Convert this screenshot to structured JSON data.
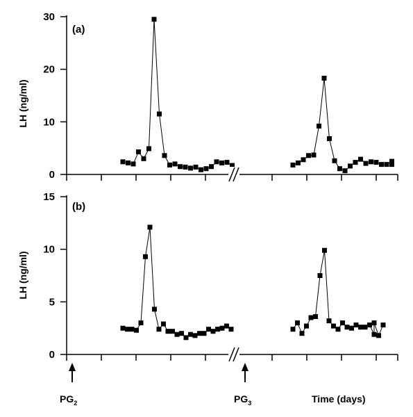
{
  "chart_data": [
    {
      "type": "line",
      "panel_label": "(a)",
      "ylabel": "LH (ng/ml)",
      "ylim": [
        0,
        30
      ],
      "yticks": [
        0,
        10,
        20,
        30
      ],
      "marker": "square",
      "grid": false,
      "series": [
        {
          "segment": "before PG3",
          "points": [
            [
              0,
              2.4
            ],
            [
              1,
              2.2
            ],
            [
              2,
              2.0
            ],
            [
              3,
              4.3
            ],
            [
              4,
              3.0
            ],
            [
              5,
              4.9
            ],
            [
              6,
              29.5
            ],
            [
              7,
              11.5
            ],
            [
              8,
              3.6
            ],
            [
              9,
              1.8
            ],
            [
              10,
              2.0
            ],
            [
              11,
              1.5
            ],
            [
              12,
              1.4
            ],
            [
              13,
              1.2
            ],
            [
              14,
              1.4
            ],
            [
              15,
              0.9
            ],
            [
              16,
              1.1
            ],
            [
              17,
              1.5
            ],
            [
              18,
              2.4
            ],
            [
              19,
              2.2
            ],
            [
              20,
              2.3
            ],
            [
              21,
              1.7
            ]
          ]
        },
        {
          "segment": "after PG3",
          "points": [
            [
              0,
              1.8
            ],
            [
              1,
              2.2
            ],
            [
              2,
              2.8
            ],
            [
              3,
              3.6
            ],
            [
              4,
              3.7
            ],
            [
              5,
              9.2
            ],
            [
              6,
              18.3
            ],
            [
              7,
              6.8
            ],
            [
              8,
              2.6
            ],
            [
              9,
              1.1
            ],
            [
              10,
              0.7
            ],
            [
              11,
              1.6
            ],
            [
              12,
              2.3
            ],
            [
              13,
              2.9
            ],
            [
              14,
              2.1
            ],
            [
              15,
              2.4
            ],
            [
              16,
              2.3
            ],
            [
              17,
              1.9
            ],
            [
              18,
              1.9
            ],
            [
              19,
              2.5
            ],
            [
              19,
              1.9
            ]
          ]
        }
      ]
    },
    {
      "type": "line",
      "panel_label": "(b)",
      "ylabel": "LH (ng/ml)",
      "ylim": [
        0,
        15
      ],
      "yticks": [
        0,
        5,
        10,
        15
      ],
      "marker": "square",
      "grid": false,
      "series": [
        {
          "segment": "before PG3",
          "points": [
            [
              0,
              2.5
            ],
            [
              1,
              2.4
            ],
            [
              2,
              2.4
            ],
            [
              3,
              2.3
            ],
            [
              4,
              3.0
            ],
            [
              5,
              9.3
            ],
            [
              6,
              12.1
            ],
            [
              7,
              4.3
            ],
            [
              8,
              2.4
            ],
            [
              9,
              2.9
            ],
            [
              10,
              2.2
            ],
            [
              11,
              2.2
            ],
            [
              12,
              1.9
            ],
            [
              13,
              2.0
            ],
            [
              14,
              1.6
            ],
            [
              15,
              1.9
            ],
            [
              16,
              1.8
            ],
            [
              17,
              2.0
            ],
            [
              18,
              2.0
            ],
            [
              19,
              2.4
            ],
            [
              20,
              2.2
            ],
            [
              21,
              2.4
            ],
            [
              22,
              2.5
            ],
            [
              23,
              2.7
            ],
            [
              24,
              2.4
            ]
          ]
        },
        {
          "segment": "after PG3",
          "points": [
            [
              0,
              2.4
            ],
            [
              1,
              3.0
            ],
            [
              2,
              2.0
            ],
            [
              3,
              2.7
            ],
            [
              4,
              3.5
            ],
            [
              5,
              3.6
            ],
            [
              6,
              7.5
            ],
            [
              7,
              9.9
            ],
            [
              8,
              3.2
            ],
            [
              9,
              2.7
            ],
            [
              10,
              2.4
            ],
            [
              11,
              3.0
            ],
            [
              12,
              2.6
            ],
            [
              13,
              2.5
            ],
            [
              14,
              2.8
            ],
            [
              15,
              2.6
            ],
            [
              16,
              2.6
            ],
            [
              17,
              2.8
            ],
            [
              18,
              1.9
            ],
            [
              18,
              3.0
            ],
            [
              19,
              1.8
            ],
            [
              20,
              2.8
            ]
          ]
        }
      ]
    }
  ],
  "annotations": {
    "pg2": {
      "main": "PG",
      "sub": "2"
    },
    "pg3": {
      "main": "PG",
      "sub": "3"
    },
    "xlabel": "Time (days)",
    "axis_break": "//"
  }
}
